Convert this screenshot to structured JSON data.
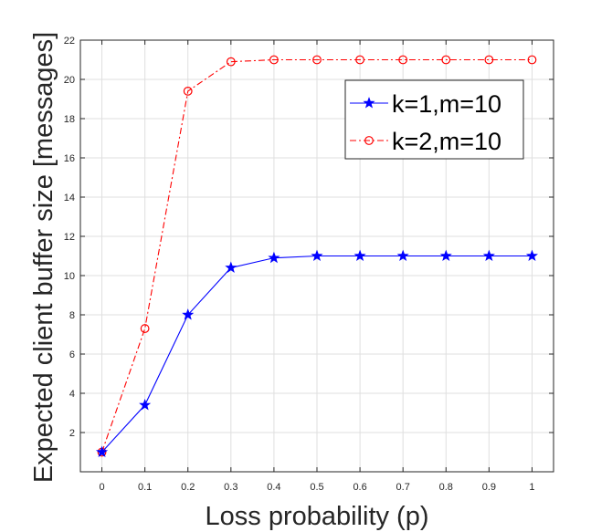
{
  "chart_data": {
    "type": "line",
    "title": "",
    "xlabel": "Loss probability (p)",
    "ylabel": "Expected client buffer size [messages]",
    "xlim": [
      -0.05,
      1.05
    ],
    "ylim": [
      0,
      22
    ],
    "x_ticks": [
      0,
      0.1,
      0.2,
      0.3,
      0.4,
      0.5,
      0.6,
      0.7,
      0.8,
      0.9,
      1
    ],
    "x_tick_labels": [
      "0",
      "0.1",
      "0.2",
      "0.3",
      "0.4",
      "0.5",
      "0.6",
      "0.7",
      "0.8",
      "0.9",
      "1"
    ],
    "y_ticks": [
      2,
      4,
      6,
      8,
      10,
      12,
      14,
      16,
      18,
      20,
      22
    ],
    "y_tick_labels": [
      "2",
      "4",
      "6",
      "8",
      "10",
      "12",
      "14",
      "16",
      "18",
      "20",
      "22"
    ],
    "grid": true,
    "legend_position": "top-right",
    "x": [
      0,
      0.1,
      0.2,
      0.3,
      0.4,
      0.5,
      0.6,
      0.7,
      0.8,
      0.9,
      1
    ],
    "series": [
      {
        "name": "k=1,m=10",
        "color": "#0000ff",
        "line_style": "solid",
        "marker": "star",
        "values": [
          1,
          3.4,
          8,
          10.4,
          10.9,
          11,
          11,
          11,
          11,
          11,
          11
        ]
      },
      {
        "name": "k=2,m=10",
        "color": "#ff0000",
        "line_style": "dash-dot",
        "marker": "circle",
        "values": [
          1,
          7.3,
          19.4,
          20.9,
          21,
          21,
          21,
          21,
          21,
          21,
          21
        ]
      }
    ]
  }
}
